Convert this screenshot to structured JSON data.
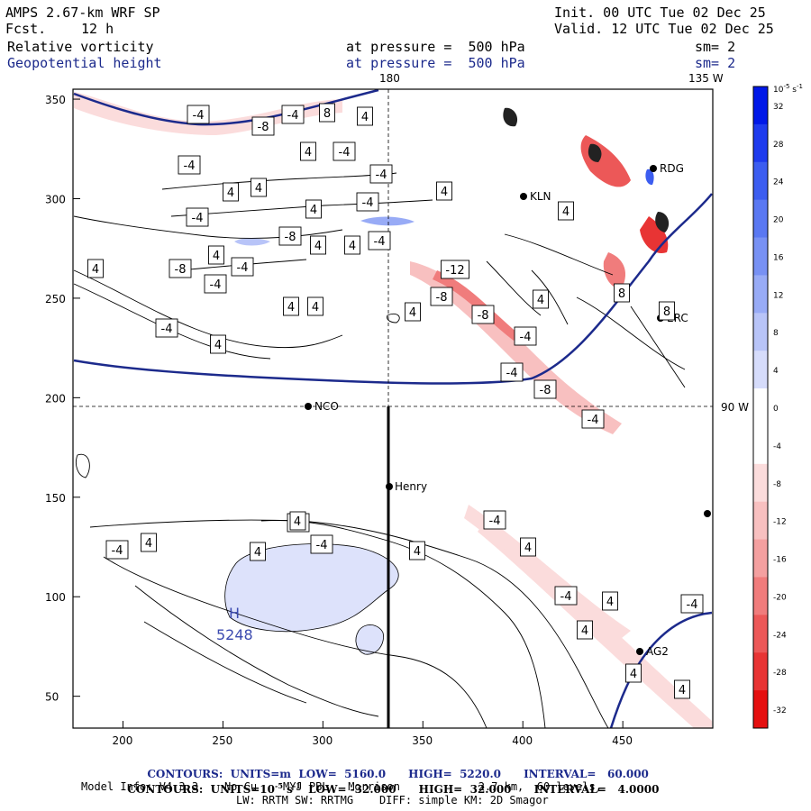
{
  "header": {
    "model": "AMPS 2.67-km WRF SP",
    "fcst_label": "Fcst.",
    "fcst_value": "12 h",
    "init": "Init. 00 UTC Tue 02 Dec 25",
    "valid": "Valid. 12 UTC Tue 02 Dec 25",
    "field1_name": "Relative vorticity",
    "field1_level": "at pressure =  500 hPa",
    "field1_sm": "sm= 2",
    "field2_name": "Geopotential height",
    "field2_level": "at pressure =  500 hPa",
    "field2_sm": "sm= 2"
  },
  "map": {
    "meridian_180": "180",
    "meridian_135w": "135 W",
    "parallel_90w": "90 W",
    "stations": [
      "KLN",
      "RDG",
      "ERC",
      "NCO",
      "Henry",
      "AG2"
    ],
    "high_marker": "H",
    "high_value": "5248",
    "contour_labels_vorticity": [
      "-4",
      "-8",
      "-4",
      "8",
      "4",
      "4",
      "-4",
      "-4",
      "4",
      "4",
      "4",
      "-4",
      "4",
      "-4",
      "-4",
      "-8",
      "4",
      "4",
      "-4",
      "4",
      "-4",
      "-8",
      "-4",
      "4",
      "4",
      "4",
      "4",
      "-12",
      "-8",
      "-4",
      "-8",
      "-8",
      "4",
      "-4",
      "4",
      "-4",
      "-4",
      "4",
      "8",
      "8",
      "4",
      "-4",
      "-4",
      "-4",
      "4",
      "-4",
      "4",
      "4",
      "-4",
      "4",
      "4",
      "-4",
      "4",
      "4"
    ],
    "contour_labels_height": [
      "4"
    ]
  },
  "chart_data": {
    "type": "map",
    "x_axis": {
      "ticks": [
        200,
        250,
        300,
        350,
        400,
        450
      ],
      "range": [
        175,
        495
      ]
    },
    "y_axis": {
      "ticks": [
        50,
        100,
        150,
        200,
        250,
        300,
        350
      ],
      "range": [
        34,
        355
      ]
    },
    "colorbar": {
      "unit_label": "10",
      "unit_exp": "-5",
      "unit_suffix": "s",
      "unit_suffix_exp": "-1",
      "ticks": [
        "32",
        "28",
        "24",
        "20",
        "16",
        "12",
        "8",
        "4",
        "0",
        "-4",
        "-8",
        "-12",
        "-16",
        "-20",
        "-24",
        "-28",
        "-32"
      ],
      "colors": [
        "#0018e8",
        "#1e3bee",
        "#3c5df0",
        "#5a78f2",
        "#7891f4",
        "#98abf6",
        "#b8c4f8",
        "#d6dcfb",
        "#ffffff",
        "#ffffff",
        "#fbdcdc",
        "#f8c0c0",
        "#f4a0a0",
        "#f07c7c",
        "#ec5858",
        "#e83434",
        "#e50f0f"
      ],
      "range": [
        -32,
        32
      ]
    }
  },
  "footer": {
    "contours1": "CONTOURS:  UNITS=m  LOW=  5160.0      HIGH=  5220.0      INTERVAL=   60.000",
    "contours2_pre": "CONTOURS:  UNITS=10",
    "contours2_exp": "-5",
    "contours2_mid": " s",
    "contours2_exp2": "-1",
    "contours2_post": "  LOW= -32.000      HIGH=  32.000      INTERVAL=   4.0000",
    "model_info": "Model Info: V4.3.3    No Cu    MYJ PBL   Morrison            2.7 km,  60 levels,",
    "physics": "LW: RRTM SW: RRTMG    DIFF: simple KM: 2D Smagor"
  }
}
